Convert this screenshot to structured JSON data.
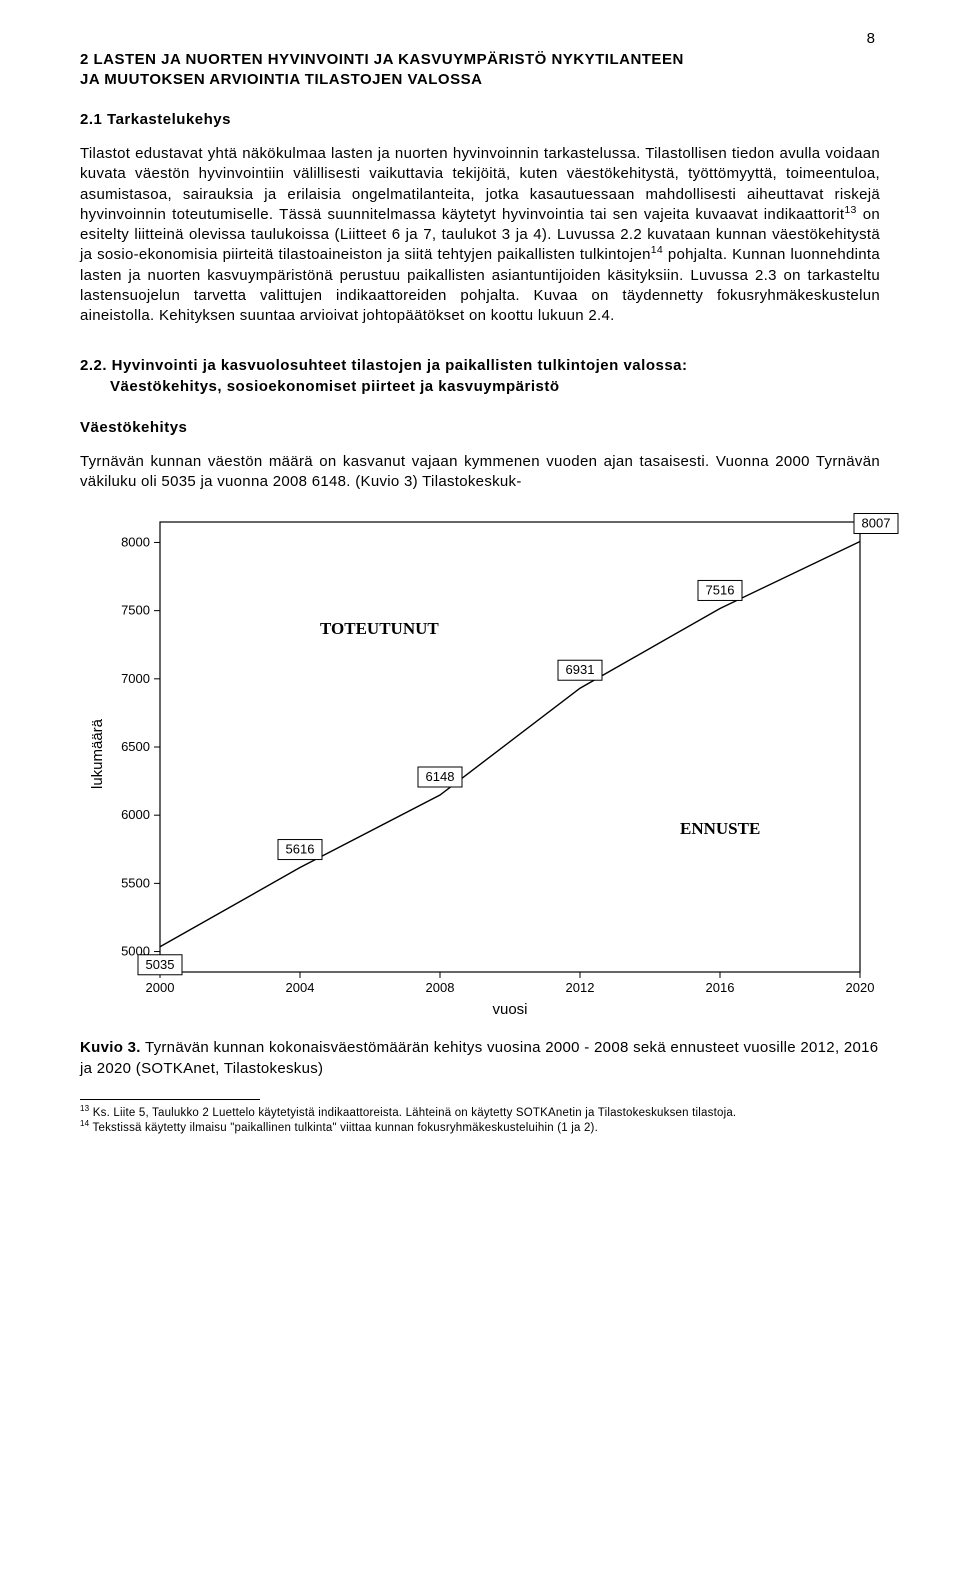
{
  "page_number": "8",
  "heading1_line1": "2 LASTEN JA NUORTEN HYVINVOINTI JA KASVUYMPÄRISTÖ NYKYTILANTEEN",
  "heading1_line2": "JA MUUTOKSEN ARVIOINTIA TILASTOJEN VALOSSA",
  "heading2": "2.1 Tarkastelukehys",
  "paragraph1": "Tilastot edustavat yhtä näkökulmaa lasten ja nuorten hyvinvoinnin tarkastelussa. Tilastollisen tiedon avulla voidaan kuvata väestön hyvinvointiin välillisesti vaikuttavia tekijöitä, kuten väestökehitystä, työttömyyttä, toimeentuloa, asumistasoa, sairauksia ja erilaisia ongelmatilanteita, jotka kasautuessaan mahdollisesti aiheuttavat riskejä hyvinvoinnin toteutumiselle. Tässä suunnitelmassa käytetyt hyvinvointia tai sen vajeita kuvaavat indikaattorit",
  "paragraph1b": " on esitelty liitteinä olevissa taulukoissa (Liitteet 6 ja 7, taulukot 3 ja 4). Luvussa 2.2 kuvataan kunnan väestökehitystä ja sosio-ekonomisia piirteitä tilastoaineiston ja siitä tehtyjen paikallisten tulkintojen",
  "paragraph1c": " pohjalta. Kunnan luonnehdinta lasten ja nuorten kasvuympäristönä perustuu paikallisten asiantuntijoiden käsityksiin. Luvussa 2.3 on tarkasteltu lastensuojelun tarvetta valittujen indikaattoreiden pohjalta. Kuvaa on täydennetty fokusryhmäkeskustelun aineistolla.  Kehityksen suuntaa arvioivat johtopäätökset on koottu lukuun 2.4.",
  "sup1": "13",
  "sup2": "14",
  "heading3_line1": "2.2. Hyvinvointi ja kasvuolosuhteet tilastojen ja paikallisten tulkintojen valossa:",
  "heading3_line2": "Väestökehitys, sosioekonomiset piirteet ja kasvuympäristö",
  "heading4": "Väestökehitys",
  "paragraph2": "Tyrnävän kunnan väestön määrä on kasvanut vajaan kymmenen vuoden ajan tasaisesti. Vuonna 2000 Tyrnävän väkiluku oli 5035 ja vuonna 2008 6148. (Kuvio 3) Tilastokeskuk-",
  "chart": {
    "type": "line",
    "title_annotation_1": "TOTEUTUNUT",
    "title_annotation_2": "ENNUSTE",
    "xlabel": "vuosi",
    "ylabel": "lukumäärä",
    "x_years": [
      2000,
      2004,
      2008,
      2012,
      2016,
      2020
    ],
    "y_ticks": [
      5000,
      5500,
      6000,
      6500,
      7000,
      7500,
      8000
    ],
    "ylim": [
      4850,
      8150
    ],
    "data_points": [
      {
        "x": 2000,
        "y": 5035,
        "label": "5035"
      },
      {
        "x": 2004,
        "y": 5616,
        "label": "5616"
      },
      {
        "x": 2008,
        "y": 6148,
        "label": "6148"
      },
      {
        "x": 2012,
        "y": 6931,
        "label": "6931"
      },
      {
        "x": 2016,
        "y": 7516,
        "label": "7516"
      },
      {
        "x": 2020,
        "y": 8007,
        "label": "8007"
      }
    ],
    "line_color": "#000000",
    "line_width": 1.4,
    "background_color": "#ffffff",
    "plot_border_color": "#000000",
    "grid": false
  },
  "caption_bold": "Kuvio 3.",
  "caption_rest": " Tyrnävän kunnan kokonaisväestömäärän kehitys vuosina 2000 - 2008 sekä ennusteet vuosille 2012, 2016 ja 2020 (SOTKAnet, Tilastokeskus)",
  "footnote1_sup": "13",
  "footnote1": " Ks. Liite 5, Taulukko 2 Luettelo käytetyistä indikaattoreista. Lähteinä on käytetty SOTKAnetin ja Tilastokeskuksen tilastoja.",
  "footnote2_sup": "14",
  "footnote2": " Tekstissä käytetty ilmaisu \"paikallinen tulkinta\" viittaa kunnan fokusryhmäkeskusteluihin (1 ja 2)."
}
